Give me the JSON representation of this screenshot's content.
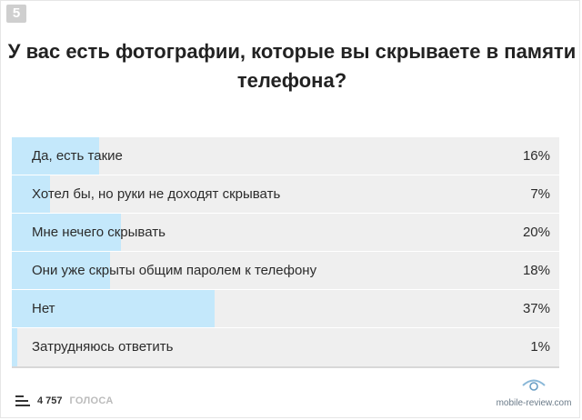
{
  "poll": {
    "number": "5",
    "question": "У вас есть фотографии, которые вы скрываете в памяти телефона?",
    "options": [
      {
        "label": "Да, есть такие",
        "percent_text": "16%",
        "value": 16
      },
      {
        "label": "Хотел бы, но руки не доходят скрывать",
        "percent_text": "7%",
        "value": 7
      },
      {
        "label": "Мне нечего скрывать",
        "percent_text": "20%",
        "value": 20
      },
      {
        "label": "Они уже скрыты общим паролем к телефону",
        "percent_text": "18%",
        "value": 18
      },
      {
        "label": "Нет",
        "percent_text": "37%",
        "value": 37
      },
      {
        "label": "Затрудняюсь ответить",
        "percent_text": "1%",
        "value": 1
      }
    ],
    "votes_count": "4 757",
    "votes_label": "ГОЛОСА"
  },
  "watermark": {
    "text": "mobile-review.com",
    "icon": "phone-logo-icon"
  },
  "colors": {
    "bar": "#c4e8fb",
    "row": "#efefef",
    "badge": "#cfcfcf"
  }
}
